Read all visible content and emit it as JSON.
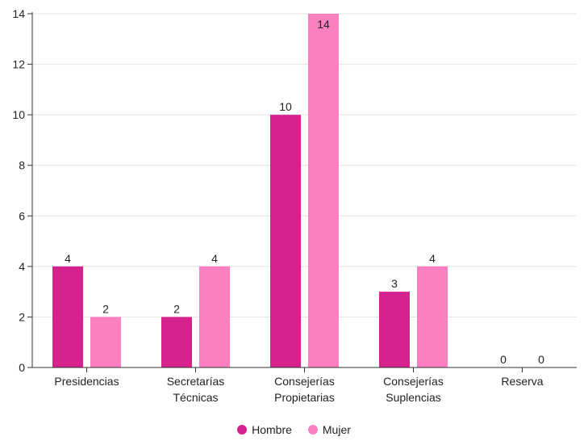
{
  "chart_data": {
    "type": "bar",
    "categories": [
      [
        "Presidencias"
      ],
      [
        "Secretarías",
        "Técnicas"
      ],
      [
        "Consejerías",
        "Propietarias"
      ],
      [
        "Consejerías",
        "Suplencias"
      ],
      [
        "Reserva"
      ]
    ],
    "series": [
      {
        "name": "Hombre",
        "color": "#d6228e",
        "values": [
          4,
          2,
          10,
          3,
          0
        ]
      },
      {
        "name": "Mujer",
        "color": "#fc7fbf",
        "values": [
          2,
          4,
          14,
          4,
          0
        ]
      }
    ],
    "yticks": [
      "0",
      "2",
      "4",
      "6",
      "8",
      "10",
      "12",
      "14"
    ],
    "ylim": [
      0,
      14
    ],
    "grid": true,
    "legend_position": "bottom-center",
    "title": "",
    "xlabel": "",
    "ylabel": ""
  }
}
